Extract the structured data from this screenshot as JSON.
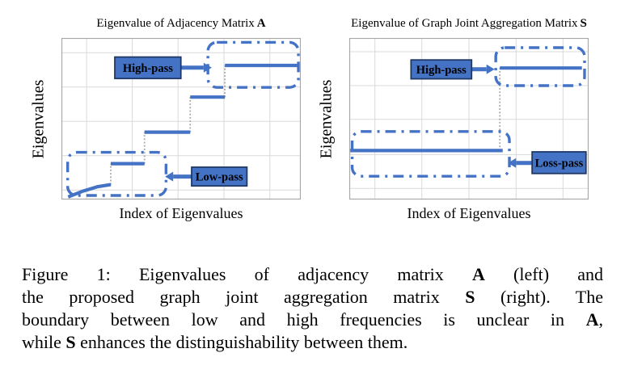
{
  "colors": {
    "accent_blue": "#4472C4",
    "label_box_fill": "#4472C4",
    "label_box_border": "#1F3864",
    "label_text": "#000000",
    "grid": "#D9D9D9",
    "plot_border": "#A6A6A6",
    "connector_grey": "#A6A6A6",
    "background": "#FFFFFF"
  },
  "chart_data": [
    {
      "type": "line",
      "title": "Eigenvalue of Adjacency Matrix ",
      "title_bold": "A",
      "ylabel": "Eigenvalues",
      "xlabel": "Index of Eigenvalues",
      "xlim": [
        0,
        1
      ],
      "ylim": [
        0,
        1
      ],
      "tick_labels": "none",
      "grid": {
        "v": [
          0.105,
          0.296,
          0.487,
          0.679,
          0.871
        ],
        "h": [
          0.059,
          0.271,
          0.484,
          0.696,
          0.909
        ]
      },
      "segments": [
        {
          "name": "rising-curve",
          "points": [
            [
              0.028,
              0.016
            ],
            [
              0.09,
              0.052
            ],
            [
              0.15,
              0.079
            ],
            [
              0.206,
              0.092
            ]
          ]
        },
        {
          "name": "step-2",
          "points": [
            [
              0.206,
              0.222
            ],
            [
              0.347,
              0.222
            ]
          ]
        },
        {
          "name": "step-3",
          "points": [
            [
              0.347,
              0.417
            ],
            [
              0.538,
              0.417
            ]
          ]
        },
        {
          "name": "step-4",
          "points": [
            [
              0.538,
              0.634
            ],
            [
              0.683,
              0.634
            ]
          ]
        },
        {
          "name": "step-5-top",
          "points": [
            [
              0.683,
              0.83
            ],
            [
              0.987,
              0.83
            ]
          ]
        }
      ],
      "connectors": [
        {
          "x": 0.206,
          "y1": 0.092,
          "y2": 0.222
        },
        {
          "x": 0.347,
          "y1": 0.222,
          "y2": 0.417
        },
        {
          "x": 0.538,
          "y1": 0.417,
          "y2": 0.634
        },
        {
          "x": 0.683,
          "y1": 0.634,
          "y2": 0.83
        }
      ],
      "boxes": [
        {
          "name": "low-pass-region",
          "x1": 0.026,
          "y1": 0.025,
          "x2": 0.437,
          "y2": 0.292
        },
        {
          "name": "high-pass-region",
          "x1": 0.612,
          "y1": 0.694,
          "x2": 0.99,
          "y2": 0.973
        }
      ],
      "annotations": [
        {
          "name": "high-pass",
          "label": "High-pass",
          "box": {
            "x1": 0.223,
            "y1": 0.749,
            "x2": 0.499,
            "y2": 0.882
          },
          "arrow": {
            "x1": 0.499,
            "x2": 0.628,
            "y": 0.816
          }
        },
        {
          "name": "low-pass",
          "label": "Low-pass",
          "box": {
            "x1": 0.544,
            "y1": 0.084,
            "x2": 0.775,
            "y2": 0.2
          },
          "arrow": {
            "x1": 0.544,
            "x2": 0.433,
            "y": 0.142
          }
        }
      ]
    },
    {
      "type": "line",
      "title": "Eigenvalue of Graph Joint Aggregation Matrix ",
      "title_bold": "S",
      "ylabel": "Eigenvalues",
      "xlabel": "Index of Eigenvalues",
      "xlim": [
        0,
        1
      ],
      "ylim": [
        0,
        1
      ],
      "tick_labels": "none",
      "grid": {
        "v": [
          0.107,
          0.303,
          0.5,
          0.697,
          0.893
        ],
        "h": [
          0.069,
          0.278,
          0.496,
          0.705,
          0.915
        ]
      },
      "segments": [
        {
          "name": "low-flat-line",
          "points": [
            [
              0.004,
              0.303
            ],
            [
              0.641,
              0.303
            ]
          ]
        },
        {
          "name": "high-flat-line",
          "points": [
            [
              0.629,
              0.814
            ],
            [
              0.972,
              0.814
            ]
          ]
        }
      ],
      "connectors": [
        {
          "x": 0.629,
          "y1": 0.303,
          "y2": 0.814
        }
      ],
      "boxes": [
        {
          "name": "low-pass-region",
          "x1": 0.012,
          "y1": 0.144,
          "x2": 0.669,
          "y2": 0.421
        },
        {
          "name": "high-pass-region",
          "x1": 0.612,
          "y1": 0.705,
          "x2": 0.983,
          "y2": 0.94
        }
      ],
      "annotations": [
        {
          "name": "high-pass",
          "label": "High-pass",
          "box": {
            "x1": 0.258,
            "y1": 0.747,
            "x2": 0.511,
            "y2": 0.864
          },
          "arrow": {
            "x1": 0.511,
            "x2": 0.607,
            "y": 0.806
          }
        },
        {
          "name": "loss-pass",
          "label": "Loss-pass",
          "box": {
            "x1": 0.764,
            "y1": 0.161,
            "x2": 0.989,
            "y2": 0.295
          },
          "arrow": {
            "x1": 0.764,
            "x2": 0.663,
            "y": 0.226
          }
        }
      ]
    }
  ],
  "caption": {
    "lines": [
      [
        {
          "t": "Figure 1: Eigenvalues of adjacency matrix "
        },
        {
          "t": "A",
          "b": 1
        },
        {
          "t": " (left) and"
        }
      ],
      [
        {
          "t": "the proposed graph joint aggregation matrix "
        },
        {
          "t": "S",
          "b": 1
        },
        {
          "t": " (right). The"
        }
      ],
      [
        {
          "t": "boundary between low and high frequencies is unclear in "
        },
        {
          "t": "A",
          "b": 1
        },
        {
          "t": ","
        }
      ],
      [
        {
          "t": "while "
        },
        {
          "t": "S",
          "b": 1
        },
        {
          "t": " enhances the distinguishability between them."
        }
      ]
    ]
  }
}
